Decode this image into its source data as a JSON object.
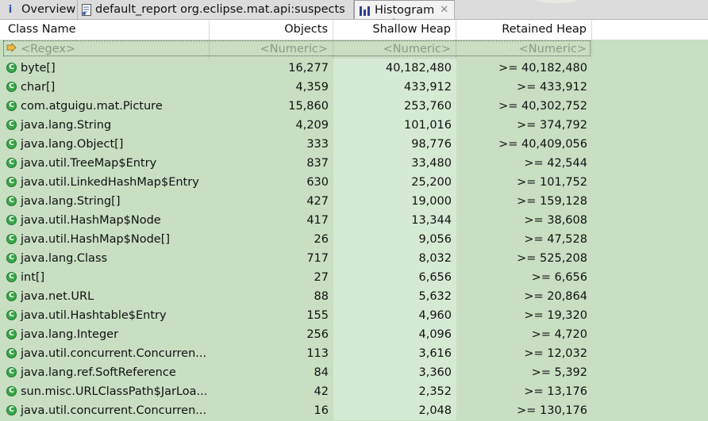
{
  "tabs": [
    {
      "label": "Overview"
    },
    {
      "label": "default_report  org.eclipse.mat.api:suspects"
    },
    {
      "label": "Histogram"
    }
  ],
  "columns": [
    "Class Name",
    "Objects",
    "Shallow Heap",
    "Retained Heap"
  ],
  "filter": {
    "class_name": "<Regex>",
    "objects": "<Numeric>",
    "shallow_heap": "<Numeric>",
    "retained_heap": "<Numeric>"
  },
  "rows": [
    {
      "name": "byte[]",
      "objects": "16,277",
      "shallow": "40,182,480",
      "retained": ">= 40,182,480"
    },
    {
      "name": "char[]",
      "objects": "4,359",
      "shallow": "433,912",
      "retained": ">= 433,912"
    },
    {
      "name": "com.atguigu.mat.Picture",
      "objects": "15,860",
      "shallow": "253,760",
      "retained": ">= 40,302,752"
    },
    {
      "name": "java.lang.String",
      "objects": "4,209",
      "shallow": "101,016",
      "retained": ">= 374,792"
    },
    {
      "name": "java.lang.Object[]",
      "objects": "333",
      "shallow": "98,776",
      "retained": ">= 40,409,056"
    },
    {
      "name": "java.util.TreeMap$Entry",
      "objects": "837",
      "shallow": "33,480",
      "retained": ">= 42,544"
    },
    {
      "name": "java.util.LinkedHashMap$Entry",
      "objects": "630",
      "shallow": "25,200",
      "retained": ">= 101,752"
    },
    {
      "name": "java.lang.String[]",
      "objects": "427",
      "shallow": "19,000",
      "retained": ">= 159,128"
    },
    {
      "name": "java.util.HashMap$Node",
      "objects": "417",
      "shallow": "13,344",
      "retained": ">= 38,608"
    },
    {
      "name": "java.util.HashMap$Node[]",
      "objects": "26",
      "shallow": "9,056",
      "retained": ">= 47,528"
    },
    {
      "name": "java.lang.Class",
      "objects": "717",
      "shallow": "8,032",
      "retained": ">= 525,208"
    },
    {
      "name": "int[]",
      "objects": "27",
      "shallow": "6,656",
      "retained": ">= 6,656"
    },
    {
      "name": "java.net.URL",
      "objects": "88",
      "shallow": "5,632",
      "retained": ">= 20,864"
    },
    {
      "name": "java.util.Hashtable$Entry",
      "objects": "155",
      "shallow": "4,960",
      "retained": ">= 19,320"
    },
    {
      "name": "java.lang.Integer",
      "objects": "256",
      "shallow": "4,096",
      "retained": ">= 4,720"
    },
    {
      "name": "java.util.concurrent.Concurren...",
      "objects": "113",
      "shallow": "3,616",
      "retained": ">= 12,032"
    },
    {
      "name": "java.lang.ref.SoftReference",
      "objects": "84",
      "shallow": "3,360",
      "retained": ">= 5,392"
    },
    {
      "name": "sun.misc.URLClassPath$JarLoa...",
      "objects": "42",
      "shallow": "2,352",
      "retained": ">= 13,176"
    },
    {
      "name": "java.util.concurrent.Concurren...",
      "objects": "16",
      "shallow": "2,048",
      "retained": ">= 130,176"
    }
  ],
  "icons": {
    "class_icon": "class-icon",
    "filter_icon": "filter-icon",
    "overview_icon": "info-icon",
    "report_icon": "report-icon",
    "histogram_icon": "histogram-icon"
  },
  "colors": {
    "row_bg": "#c8dfc2",
    "shallow_col_bg": "#d5ead2",
    "class_icon": "#3aa64a"
  }
}
